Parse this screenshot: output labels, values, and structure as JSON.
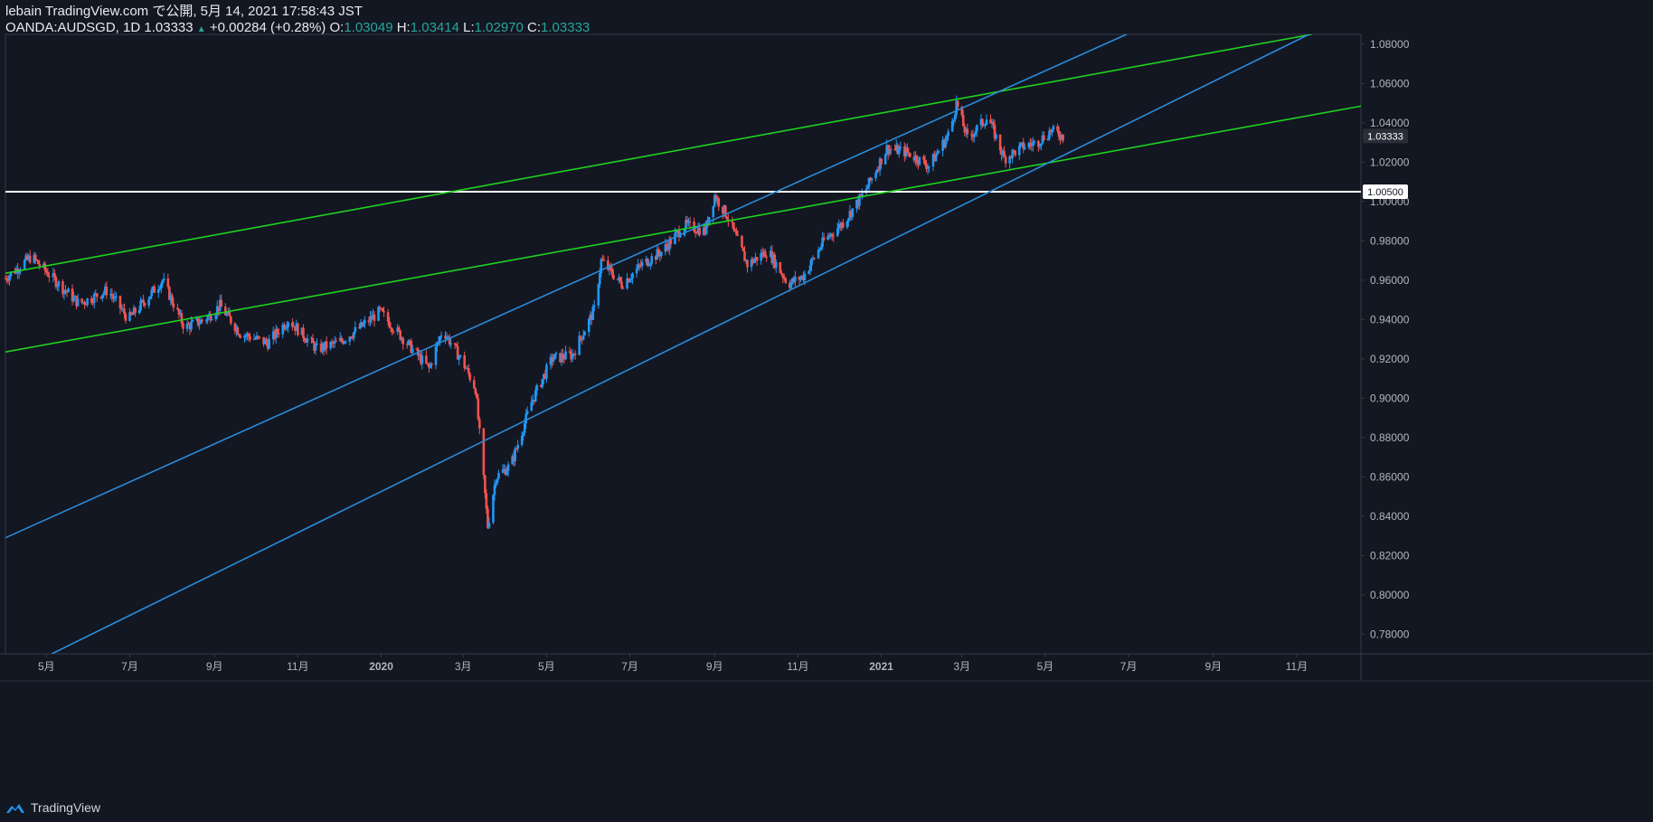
{
  "header": {
    "line1": "lebain TradingView.com で公開, 5月 14, 2021 17:58:43 JST",
    "symbol": "OANDA:AUDSGD, 1D",
    "last": "1.03333",
    "change": "+0.00284 (+0.28%)",
    "o_label": "O:",
    "o_val": "1.03049",
    "h_label": "H:",
    "h_val": "1.03414",
    "l_label": "L:",
    "l_val": "1.02970",
    "c_label": "C:",
    "c_val": "1.03333"
  },
  "footer": {
    "brand": "TradingView",
    "icon": "tradingview-logo-icon"
  },
  "colors": {
    "bg": "#131722",
    "up": "#2196f3",
    "down": "#ef5350",
    "green": "#1ed31e",
    "blue": "#2a8bd9",
    "hline": "#ffffff",
    "axis_text": "#b2b5be",
    "price_label_bg": "#2a2e39"
  },
  "chart_data": {
    "type": "candlestick",
    "symbol": "OANDA:AUDSGD",
    "interval": "1D",
    "ylim": [
      0.77,
      1.085
    ],
    "y_ticks": [
      "1.08000",
      "1.06000",
      "1.04000",
      "1.02000",
      "1.00000",
      "0.98000",
      "0.96000",
      "0.94000",
      "0.92000",
      "0.90000",
      "0.88000",
      "0.86000",
      "0.84000",
      "0.82000",
      "0.80000",
      "0.78000"
    ],
    "x_ticks": [
      "5月",
      "7月",
      "9月",
      "11月",
      "2020",
      "3月",
      "5月",
      "7月",
      "9月",
      "11月",
      "2021",
      "3月",
      "5月",
      "7月",
      "9月",
      "11月"
    ],
    "x_tick_dates": [
      "2019-05-01",
      "2019-07-01",
      "2019-09-01",
      "2019-11-01",
      "2020-01-01",
      "2020-03-01",
      "2020-05-01",
      "2020-07-01",
      "2020-09-01",
      "2020-11-01",
      "2021-01-01",
      "2021-03-01",
      "2021-05-01",
      "2021-07-01",
      "2021-09-01",
      "2021-11-01"
    ],
    "xlim": [
      "2019-04-01",
      "2021-12-18"
    ],
    "current_price": "1.03333",
    "horizontal_line": {
      "value": 1.005,
      "label": "1.00500"
    },
    "key_closes": [
      [
        "2019-04-01",
        0.961
      ],
      [
        "2019-04-20",
        0.972
      ],
      [
        "2019-05-10",
        0.958
      ],
      [
        "2019-05-25",
        0.948
      ],
      [
        "2019-06-15",
        0.955
      ],
      [
        "2019-06-30",
        0.94
      ],
      [
        "2019-07-15",
        0.952
      ],
      [
        "2019-07-25",
        0.96
      ],
      [
        "2019-08-10",
        0.936
      ],
      [
        "2019-08-25",
        0.94
      ],
      [
        "2019-09-05",
        0.947
      ],
      [
        "2019-09-20",
        0.933
      ],
      [
        "2019-10-10",
        0.928
      ],
      [
        "2019-10-25",
        0.94
      ],
      [
        "2019-11-15",
        0.925
      ],
      [
        "2019-11-30",
        0.928
      ],
      [
        "2019-12-15",
        0.935
      ],
      [
        "2019-12-31",
        0.944
      ],
      [
        "2020-01-20",
        0.928
      ],
      [
        "2020-02-05",
        0.915
      ],
      [
        "2020-02-15",
        0.935
      ],
      [
        "2020-03-01",
        0.918
      ],
      [
        "2020-03-10",
        0.905
      ],
      [
        "2020-03-19",
        0.835
      ],
      [
        "2020-03-25",
        0.86
      ],
      [
        "2020-04-05",
        0.866
      ],
      [
        "2020-04-20",
        0.898
      ],
      [
        "2020-05-05",
        0.92
      ],
      [
        "2020-05-20",
        0.922
      ],
      [
        "2020-06-05",
        0.945
      ],
      [
        "2020-06-10",
        0.97
      ],
      [
        "2020-06-25",
        0.958
      ],
      [
        "2020-07-10",
        0.968
      ],
      [
        "2020-07-25",
        0.975
      ],
      [
        "2020-08-10",
        0.988
      ],
      [
        "2020-08-25",
        0.985
      ],
      [
        "2020-09-01",
        1.003
      ],
      [
        "2020-09-10",
        0.993
      ],
      [
        "2020-09-25",
        0.968
      ],
      [
        "2020-10-10",
        0.975
      ],
      [
        "2020-10-25",
        0.958
      ],
      [
        "2020-11-05",
        0.962
      ],
      [
        "2020-11-20",
        0.98
      ],
      [
        "2020-12-05",
        0.99
      ],
      [
        "2020-12-20",
        1.005
      ],
      [
        "2021-01-05",
        1.027
      ],
      [
        "2021-01-20",
        1.025
      ],
      [
        "2021-02-05",
        1.018
      ],
      [
        "2021-02-20",
        1.035
      ],
      [
        "2021-02-25",
        1.05
      ],
      [
        "2021-03-05",
        1.032
      ],
      [
        "2021-03-20",
        1.043
      ],
      [
        "2021-04-01",
        1.022
      ],
      [
        "2021-04-15",
        1.028
      ],
      [
        "2021-04-25",
        1.03
      ],
      [
        "2021-05-05",
        1.036
      ],
      [
        "2021-05-14",
        1.0333
      ]
    ],
    "trendlines": [
      {
        "name": "",
        "color": "green",
        "points": [
          [
            "2019-04-01",
            0.9635
          ],
          [
            "2021-11-12",
            1.085
          ]
        ]
      },
      {
        "name": "",
        "color": "green",
        "points": [
          [
            "2019-04-01",
            0.9235
          ],
          [
            "2021-12-18",
            1.0485
          ]
        ]
      },
      {
        "name": "",
        "color": "blue",
        "points": [
          [
            "2019-04-01",
            0.829
          ],
          [
            "2021-07-01",
            1.0855
          ]
        ]
      },
      {
        "name": "",
        "color": "blue",
        "points": [
          [
            "2019-05-05",
            0.77
          ],
          [
            "2021-11-10",
            1.085
          ]
        ]
      }
    ]
  }
}
